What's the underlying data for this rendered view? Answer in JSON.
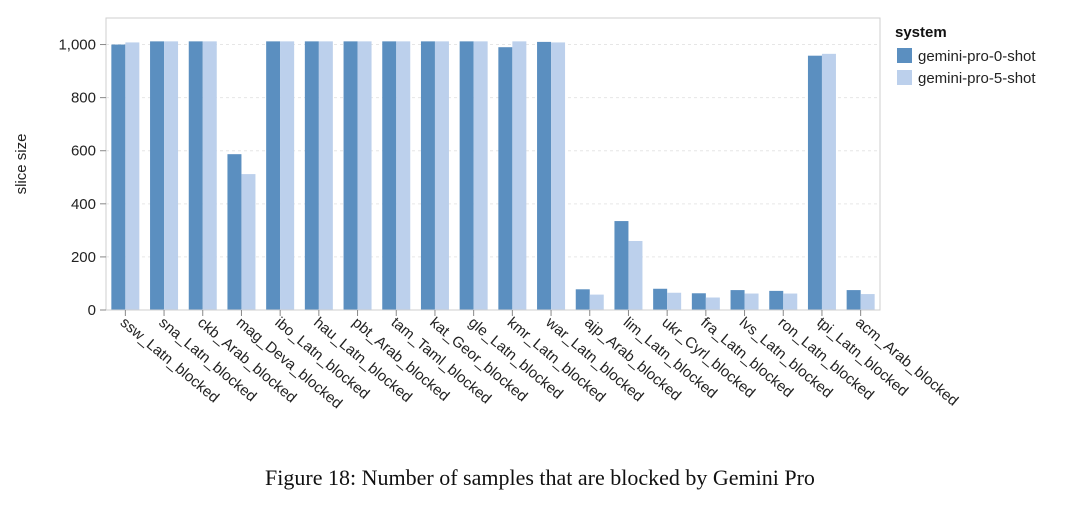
{
  "chart_data": {
    "type": "bar",
    "title": "",
    "xlabel": "",
    "ylabel": "slice size",
    "ylim": [
      0,
      1100
    ],
    "yticks": [
      0,
      200,
      400,
      600,
      800,
      1000
    ],
    "ytick_labels": [
      "0",
      "200",
      "400",
      "600",
      "800",
      "1,000"
    ],
    "grid": "horizontal dashed",
    "legend_position": "top-right outside",
    "legend_title": "system",
    "categories": [
      "ssw_Latn_blocked",
      "sna_Latn_blocked",
      "ckb_Arab_blocked",
      "mag_Deva_blocked",
      "ibo_Latn_blocked",
      "hau_Latn_blocked",
      "pbt_Arab_blocked",
      "tam_Taml_blocked",
      "kat_Geor_blocked",
      "gle_Latn_blocked",
      "kmr_Latn_blocked",
      "war_Latn_blocked",
      "ajp_Arab_blocked",
      "lim_Latn_blocked",
      "ukr_Cyrl_blocked",
      "fra_Latn_blocked",
      "lvs_Latn_blocked",
      "ron_Latn_blocked",
      "tpi_Latn_blocked",
      "acm_Arab_blocked"
    ],
    "series": [
      {
        "name": "gemini-pro-0-shot",
        "color": "#5b8fc0",
        "values": [
          1000,
          1012,
          1012,
          587,
          1012,
          1012,
          1012,
          1012,
          1012,
          1012,
          990,
          1010,
          78,
          335,
          80,
          63,
          75,
          72,
          958,
          75
        ]
      },
      {
        "name": "gemini-pro-5-shot",
        "color": "#bcd0ec",
        "values": [
          1008,
          1012,
          1012,
          512,
          1012,
          1012,
          1012,
          1012,
          1012,
          1012,
          1012,
          1008,
          58,
          260,
          65,
          47,
          62,
          62,
          965,
          60
        ]
      }
    ]
  },
  "caption": "Figure 18: Number of samples that are blocked by Gemini Pro"
}
